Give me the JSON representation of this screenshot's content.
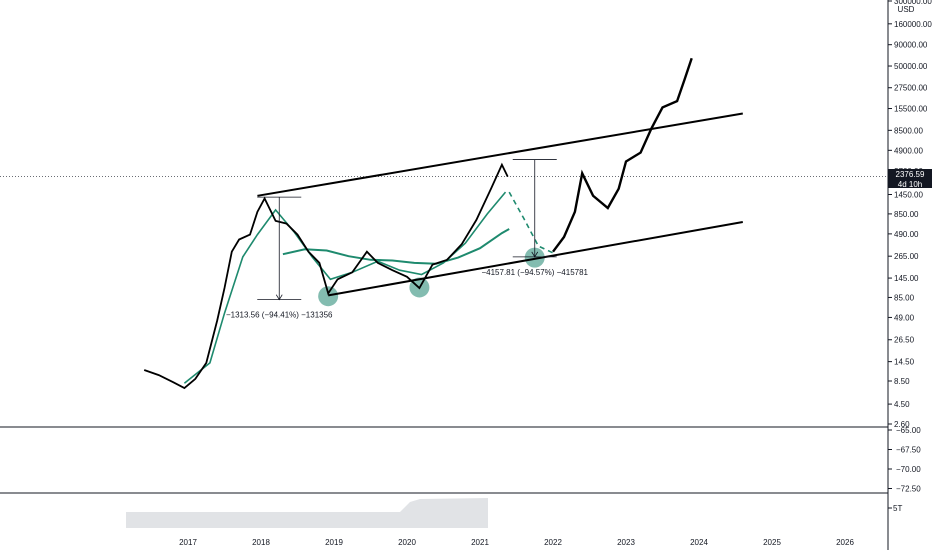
{
  "chart_data": {
    "type": "line",
    "title": "",
    "currency_label": "USD",
    "x_axis": {
      "tick_labels": [
        "2017",
        "2018",
        "2019",
        "2020",
        "2021",
        "2022",
        "2023",
        "2024",
        "2025",
        "2026"
      ]
    },
    "y_axis": {
      "scale": "log",
      "tick_labels": [
        "300000.00",
        "160000.00",
        "90000.00",
        "50000.00",
        "27500.00",
        "15500.00",
        "8500.00",
        "4900.00",
        "2760.00",
        "1450.00",
        "850.00",
        "490.00",
        "265.00",
        "145.00",
        "85.00",
        "49.00",
        "26.50",
        "14.50",
        "8.50",
        "4.50",
        "2.60"
      ],
      "range": [
        2.6,
        300000
      ]
    },
    "last_price": {
      "value": "2376.59",
      "countdown": "4d 10h"
    },
    "price_series": {
      "name": "",
      "color": "#000000",
      "points": [
        {
          "x": 2016.4,
          "y": 11.5
        },
        {
          "x": 2016.6,
          "y": 10
        },
        {
          "x": 2016.8,
          "y": 8.2
        },
        {
          "x": 2016.95,
          "y": 7
        },
        {
          "x": 2017.1,
          "y": 9
        },
        {
          "x": 2017.25,
          "y": 14
        },
        {
          "x": 2017.4,
          "y": 45
        },
        {
          "x": 2017.5,
          "y": 110
        },
        {
          "x": 2017.6,
          "y": 300
        },
        {
          "x": 2017.7,
          "y": 420
        },
        {
          "x": 2017.85,
          "y": 480
        },
        {
          "x": 2017.95,
          "y": 900
        },
        {
          "x": 2018.05,
          "y": 1300
        },
        {
          "x": 2018.2,
          "y": 700
        },
        {
          "x": 2018.35,
          "y": 650
        },
        {
          "x": 2018.5,
          "y": 480
        },
        {
          "x": 2018.65,
          "y": 300
        },
        {
          "x": 2018.8,
          "y": 220
        },
        {
          "x": 2018.92,
          "y": 95
        },
        {
          "x": 2019.05,
          "y": 140
        },
        {
          "x": 2019.25,
          "y": 170
        },
        {
          "x": 2019.45,
          "y": 300
        },
        {
          "x": 2019.6,
          "y": 220
        },
        {
          "x": 2019.8,
          "y": 180
        },
        {
          "x": 2020.0,
          "y": 150
        },
        {
          "x": 2020.17,
          "y": 110
        },
        {
          "x": 2020.35,
          "y": 210
        },
        {
          "x": 2020.55,
          "y": 240
        },
        {
          "x": 2020.75,
          "y": 370
        },
        {
          "x": 2020.95,
          "y": 720
        },
        {
          "x": 2021.15,
          "y": 1700
        },
        {
          "x": 2021.3,
          "y": 3300
        },
        {
          "x": 2021.38,
          "y": 2376.59
        }
      ]
    },
    "projection_series": {
      "name": "",
      "color": "#000000",
      "points": [
        {
          "x": 2022.0,
          "y": 300
        },
        {
          "x": 2022.15,
          "y": 450
        },
        {
          "x": 2022.3,
          "y": 900
        },
        {
          "x": 2022.4,
          "y": 2600
        },
        {
          "x": 2022.55,
          "y": 1400
        },
        {
          "x": 2022.75,
          "y": 1000
        },
        {
          "x": 2022.9,
          "y": 1700
        },
        {
          "x": 2023.0,
          "y": 3600
        },
        {
          "x": 2023.2,
          "y": 4600
        },
        {
          "x": 2023.35,
          "y": 9000
        },
        {
          "x": 2023.5,
          "y": 16000
        },
        {
          "x": 2023.7,
          "y": 19000
        },
        {
          "x": 2023.8,
          "y": 34000
        },
        {
          "x": 2023.9,
          "y": 62000
        }
      ]
    },
    "moving_average_fast": {
      "name": "",
      "color": "#1e8a6e",
      "points": [
        {
          "x": 2016.95,
          "y": 8
        },
        {
          "x": 2017.3,
          "y": 14
        },
        {
          "x": 2017.5,
          "y": 55
        },
        {
          "x": 2017.75,
          "y": 260
        },
        {
          "x": 2017.95,
          "y": 480
        },
        {
          "x": 2018.2,
          "y": 950
        },
        {
          "x": 2018.45,
          "y": 520
        },
        {
          "x": 2018.7,
          "y": 260
        },
        {
          "x": 2018.95,
          "y": 140
        },
        {
          "x": 2019.25,
          "y": 170
        },
        {
          "x": 2019.6,
          "y": 230
        },
        {
          "x": 2019.9,
          "y": 180
        },
        {
          "x": 2020.2,
          "y": 160
        },
        {
          "x": 2020.5,
          "y": 220
        },
        {
          "x": 2020.8,
          "y": 380
        },
        {
          "x": 2021.1,
          "y": 850
        },
        {
          "x": 2021.35,
          "y": 1550
        }
      ]
    },
    "moving_average_slow": {
      "name": "",
      "color": "#1e8a6e",
      "points": [
        {
          "x": 2018.3,
          "y": 280
        },
        {
          "x": 2018.6,
          "y": 320
        },
        {
          "x": 2018.9,
          "y": 310
        },
        {
          "x": 2019.2,
          "y": 265
        },
        {
          "x": 2019.5,
          "y": 240
        },
        {
          "x": 2019.8,
          "y": 235
        },
        {
          "x": 2020.1,
          "y": 220
        },
        {
          "x": 2020.4,
          "y": 215
        },
        {
          "x": 2020.7,
          "y": 255
        },
        {
          "x": 2021.0,
          "y": 330
        },
        {
          "x": 2021.3,
          "y": 500
        },
        {
          "x": 2021.4,
          "y": 560
        }
      ]
    },
    "projected_average": {
      "name": "",
      "color": "#1e8a6e",
      "dashed": true,
      "points": [
        {
          "x": 2021.4,
          "y": 1550
        },
        {
          "x": 2021.6,
          "y": 750
        },
        {
          "x": 2021.8,
          "y": 350
        },
        {
          "x": 2022.0,
          "y": 290
        }
      ]
    },
    "channel_upper": {
      "color": "#000000",
      "points": [
        {
          "x": 2017.95,
          "y": 1400
        },
        {
          "x": 2024.6,
          "y": 13500
        }
      ]
    },
    "channel_lower": {
      "color": "#000000",
      "points": [
        {
          "x": 2018.92,
          "y": 90
        },
        {
          "x": 2024.6,
          "y": 680
        }
      ]
    },
    "highlighted_lows": [
      {
        "x": 2018.92,
        "y": 88
      },
      {
        "x": 2020.17,
        "y": 112
      },
      {
        "x": 2021.75,
        "y": 255
      }
    ],
    "drawdown_annotations": [
      {
        "label": "−1313.56 (−94.41%) −131356",
        "from": {
          "x": 2018.25,
          "y": 1350
        },
        "to": {
          "x": 2018.25,
          "y": 80
        }
      },
      {
        "label": "−4157.81 (−94.57%) −415781",
        "from": {
          "x": 2021.75,
          "y": 3800
        },
        "to": {
          "x": 2021.75,
          "y": 260
        }
      }
    ],
    "oscillator_panel": {
      "tick_labels": [
        "−65.00",
        "−67.50",
        "−70.00",
        "−72.50"
      ]
    },
    "volume_panel": {
      "tick_labels": [
        "5T"
      ],
      "color": "#e1e3e6"
    },
    "grid": false,
    "legend": "none",
    "accent_color": "#5aa596"
  }
}
